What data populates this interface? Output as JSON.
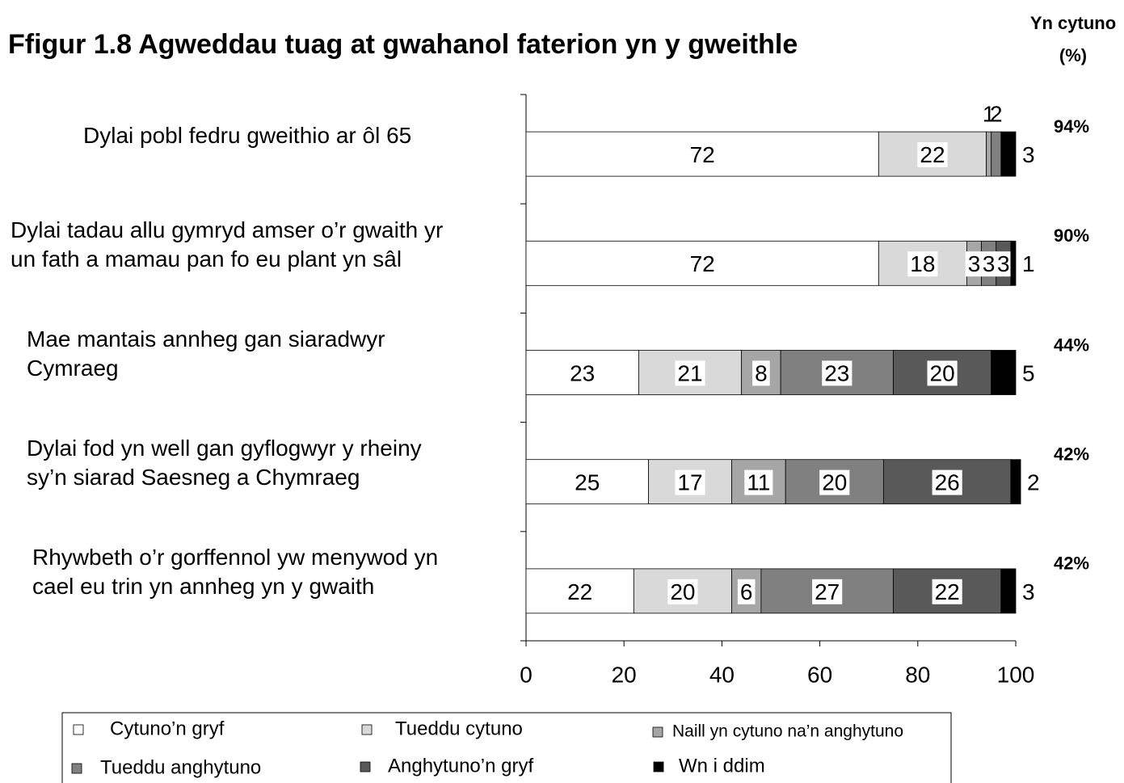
{
  "chart_data": {
    "type": "stacked_barh",
    "title": "Ffigur 1.8  Agweddau tuag at gwahanol faterion yn y gweithle",
    "categories": [
      "Dylai pobl fedru  gweithio ar ôl 65",
      "Dylai tadau allu gymryd amser o’r gwaith yr\nun fath a mamau  pan fo eu plant yn sâl",
      "Mae mantais annheg gan siaradwyr\nCymraeg",
      "Dylai fod yn well gan gyflogwyr y rheiny\nsy’n siarad Saesneg a Chymraeg",
      "Rhywbeth o’r gorffennol yw  menywod yn\ncael eu trin yn annheg yn y gwaith"
    ],
    "series": [
      {
        "name": "Cytuno’n gryf",
        "color": "#ffffff",
        "values": [
          72,
          72,
          23,
          25,
          22
        ]
      },
      {
        "name": "Tueddu cytuno",
        "color": "#d9d9d9",
        "values": [
          22,
          18,
          21,
          17,
          20
        ]
      },
      {
        "name": "Naill yn cytuno na’n anghytuno",
        "color": "#a6a6a6",
        "values": [
          1,
          3,
          8,
          11,
          6
        ]
      },
      {
        "name": "Tueddu anghytuno",
        "color": "#808080",
        "values": [
          2,
          3,
          23,
          20,
          27
        ]
      },
      {
        "name": "Anghytuno’n gryf",
        "color": "#595959",
        "values": [
          null,
          3,
          20,
          26,
          22
        ]
      },
      {
        "name": "Wn i ddim",
        "color": "#000000",
        "values": [
          3,
          1,
          5,
          2,
          3
        ]
      }
    ],
    "agree": {
      "header": [
        "Yn cytuno",
        "(%)"
      ],
      "values": [
        94,
        90,
        44,
        42,
        42
      ],
      "value_labels": [
        "94%",
        "90%",
        "44%",
        "42%",
        "42%"
      ]
    },
    "xlim": [
      0,
      100
    ],
    "xticks": [
      0,
      20,
      40,
      60,
      80,
      100
    ]
  }
}
